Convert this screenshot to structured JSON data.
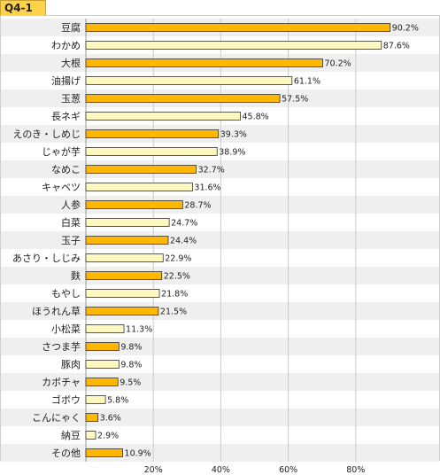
{
  "header": {
    "title": "Q4-1"
  },
  "colors": {
    "bar_dark": "#ffb800",
    "bar_light": "#fff8c0",
    "bar_border": "#333333",
    "row_alt": "#efefef",
    "row_plain": "#ffffff",
    "grid": "#cccccc"
  },
  "chart_data": {
    "type": "bar",
    "orientation": "horizontal",
    "title": "",
    "xlabel": "",
    "ylabel": "",
    "xlim": [
      0,
      100
    ],
    "tick_labels": [
      "20%",
      "40%",
      "60%",
      "80%"
    ],
    "ticks": [
      20,
      40,
      60,
      80
    ],
    "grid": true,
    "unit_suffix": "%",
    "categories": [
      "豆腐",
      "わかめ",
      "大根",
      "油揚げ",
      "玉葱",
      "長ネギ",
      "えのき・しめじ",
      "じゃが芋",
      "なめこ",
      "キャベツ",
      "人参",
      "白菜",
      "玉子",
      "あさり・しじみ",
      "麩",
      "もやし",
      "ほうれん草",
      "小松菜",
      "さつま芋",
      "豚肉",
      "カボチャ",
      "ゴボウ",
      "こんにゃく",
      "納豆",
      "その他"
    ],
    "values": [
      90.2,
      87.6,
      70.2,
      61.1,
      57.5,
      45.8,
      39.3,
      38.9,
      32.7,
      31.6,
      28.7,
      24.7,
      24.4,
      22.9,
      22.5,
      21.8,
      21.5,
      11.3,
      9.8,
      9.8,
      9.5,
      5.8,
      3.6,
      2.9,
      10.9
    ]
  }
}
